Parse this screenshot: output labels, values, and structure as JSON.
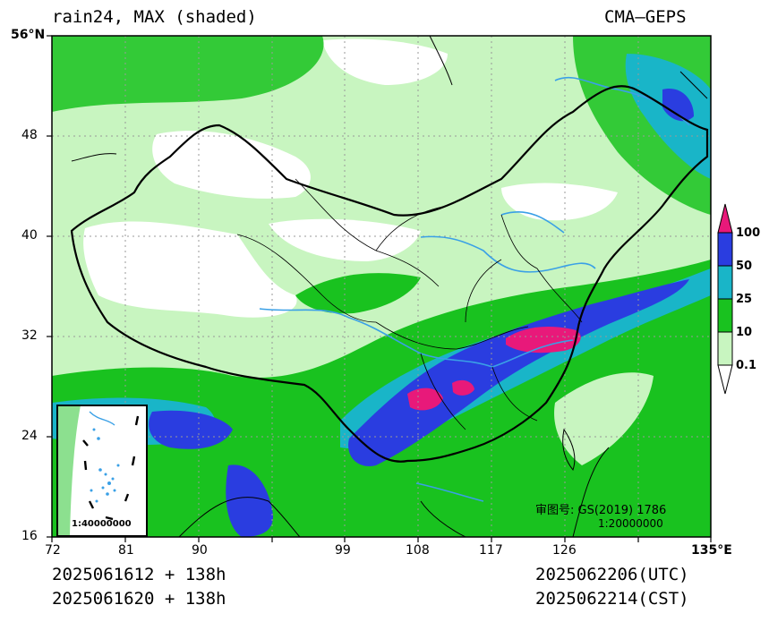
{
  "header": {
    "title": "rain24, MAX (shaded)",
    "source": "CMA—GEPS"
  },
  "footer": {
    "init_utc": "2025061612 + 138h",
    "init_cst": "2025061620 + 138h",
    "valid_utc": "2025062206(UTC)",
    "valid_cst": "2025062214(CST)"
  },
  "axes": {
    "y_ticks": [
      "56°N",
      "48",
      "40",
      "32",
      "24",
      "16"
    ],
    "x_ticks": [
      "72",
      "81",
      "90",
      "99",
      "108",
      "117",
      "126",
      "135°E"
    ]
  },
  "legend": {
    "levels": [
      "100",
      "50",
      "25",
      "10",
      "0.1"
    ],
    "colors": [
      "#e8197a",
      "#2a3de0",
      "#19b5c8",
      "#19c21f",
      "#c8f5c0"
    ]
  },
  "annotations": {
    "approval": "审图号: GS(2019) 1786",
    "scale_main": "1:20000000",
    "scale_inset": "1:40000000"
  },
  "colors": {
    "coast": "#000000",
    "river": "#3aa0e6"
  }
}
